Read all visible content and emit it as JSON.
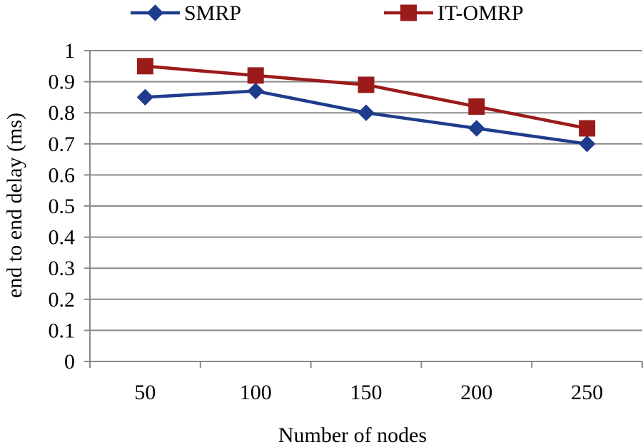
{
  "chart_data": {
    "type": "line",
    "title": "",
    "xlabel": "Number of nodes",
    "ylabel": "end to end delay (ms)",
    "categories": [
      "50",
      "100",
      "150",
      "200",
      "250"
    ],
    "ylim": [
      0,
      1
    ],
    "yticks": [
      "0",
      "0.1",
      "0.2",
      "0.3",
      "0.4",
      "0.5",
      "0.6",
      "0.7",
      "0.8",
      "0.9",
      "1"
    ],
    "grid": true,
    "legend_position": "top",
    "series": [
      {
        "name": "SMRP",
        "values": [
          0.85,
          0.87,
          0.8,
          0.75,
          0.7
        ],
        "color": "#1F3C8C",
        "marker": "diamond"
      },
      {
        "name": "IT-OMRP",
        "values": [
          0.95,
          0.92,
          0.89,
          0.82,
          0.75
        ],
        "color": "#9B1B1B",
        "marker": "square"
      }
    ]
  }
}
